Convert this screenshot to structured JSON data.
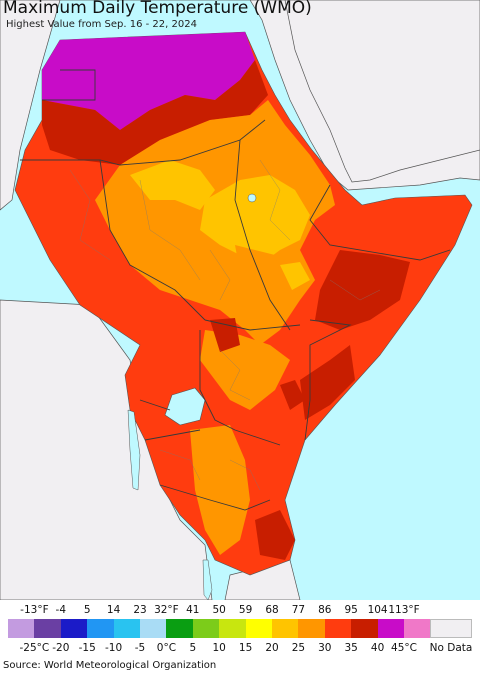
{
  "title": "Maximum Daily Temperature (WMO)",
  "subtitle": "Highest Value from Sep. 16 - 22, 2024",
  "source": "Source: World Meteorological Organization",
  "legend": {
    "fahrenheit_ticks": [
      "-13°F",
      "-4",
      "5",
      "14",
      "23",
      "32°F",
      "41",
      "50",
      "59",
      "68",
      "77",
      "86",
      "95",
      "104",
      "113°F"
    ],
    "celsius_ticks": [
      "-25°C",
      "-20",
      "-15",
      "-10",
      "-5",
      "0°C",
      "5",
      "10",
      "15",
      "20",
      "25",
      "30",
      "35",
      "40",
      "45°C"
    ],
    "colors": [
      "#c39be0",
      "#6a3fa3",
      "#1b1bc8",
      "#2196f3",
      "#29c3f0",
      "#a9dcf5",
      "#0a9e12",
      "#7ccc1a",
      "#c8e60f",
      "#ffff00",
      "#ffc400",
      "#ff9600",
      "#ff3c0f",
      "#c81e00",
      "#c80cc8",
      "#f078c8"
    ],
    "no_data_label": "No Data",
    "no_data_color": "#f1eff2"
  },
  "colors": {
    "water": "#bff9ff",
    "land_outside": "#f1eff2",
    "border": "#4a4a4a"
  }
}
